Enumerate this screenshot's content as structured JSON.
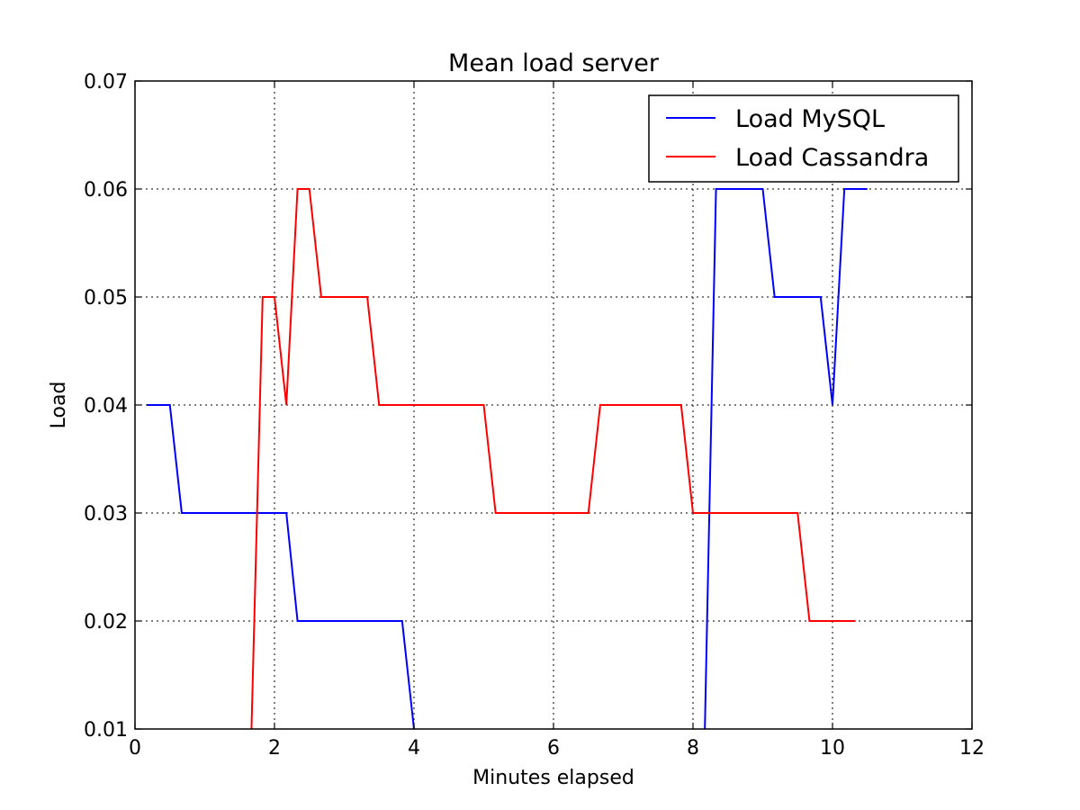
{
  "chart_data": {
    "type": "line",
    "title": "Mean load server",
    "xlabel": "Minutes elapsed",
    "ylabel": "Load",
    "xlim": [
      0,
      12
    ],
    "ylim": [
      0.01,
      0.07
    ],
    "xticks": [
      0,
      2,
      4,
      6,
      8,
      10,
      12
    ],
    "xtick_labels": [
      "0",
      "2",
      "4",
      "6",
      "8",
      "10",
      "12"
    ],
    "yticks": [
      0.01,
      0.02,
      0.03,
      0.04,
      0.05,
      0.06,
      0.07
    ],
    "ytick_labels": [
      "0.01",
      "0.02",
      "0.03",
      "0.04",
      "0.05",
      "0.06",
      "0.07"
    ],
    "grid": true,
    "legend_position": "top-right",
    "series": [
      {
        "name": "Load MySQL",
        "color": "#0000ff",
        "x": [
          0.17,
          0.5,
          0.67,
          0.83,
          1.0,
          1.17,
          1.33,
          1.5,
          1.67,
          1.83,
          2.0,
          2.17,
          2.33,
          2.5,
          2.67,
          2.83,
          3.0,
          3.17,
          3.33,
          3.5,
          3.67,
          3.83,
          4.0,
          4.17,
          8.0,
          8.17,
          8.33,
          8.5,
          8.67,
          8.83,
          9.0,
          9.17,
          9.33,
          9.5,
          9.67,
          9.83,
          10.0,
          10.17,
          10.33,
          10.5
        ],
        "y": [
          0.04,
          0.04,
          0.03,
          0.03,
          0.03,
          0.03,
          0.03,
          0.03,
          0.03,
          0.03,
          0.03,
          0.03,
          0.02,
          0.02,
          0.02,
          0.02,
          0.02,
          0.02,
          0.02,
          0.02,
          0.02,
          0.02,
          0.01,
          0.0,
          0.0,
          0.01,
          0.06,
          0.06,
          0.06,
          0.06,
          0.06,
          0.05,
          0.05,
          0.05,
          0.05,
          0.05,
          0.04,
          0.06,
          0.06,
          0.06
        ]
      },
      {
        "name": "Load Cassandra",
        "color": "#ff0000",
        "x": [
          1.5,
          1.67,
          1.83,
          2.0,
          2.17,
          2.33,
          2.5,
          2.67,
          2.83,
          3.0,
          3.17,
          3.33,
          3.5,
          3.67,
          3.83,
          4.0,
          4.17,
          4.33,
          4.5,
          4.67,
          4.83,
          5.0,
          5.17,
          5.33,
          5.5,
          5.67,
          5.83,
          6.0,
          6.17,
          6.33,
          6.5,
          6.67,
          6.83,
          7.0,
          7.17,
          7.33,
          7.5,
          7.67,
          7.83,
          8.0,
          8.17,
          8.33,
          8.5,
          8.67,
          8.83,
          9.0,
          9.17,
          9.33,
          9.5,
          9.67,
          9.83,
          10.0,
          10.17,
          10.33
        ],
        "y": [
          0.0,
          0.01,
          0.05,
          0.05,
          0.04,
          0.06,
          0.06,
          0.05,
          0.05,
          0.05,
          0.05,
          0.05,
          0.04,
          0.04,
          0.04,
          0.04,
          0.04,
          0.04,
          0.04,
          0.04,
          0.04,
          0.04,
          0.03,
          0.03,
          0.03,
          0.03,
          0.03,
          0.03,
          0.03,
          0.03,
          0.03,
          0.04,
          0.04,
          0.04,
          0.04,
          0.04,
          0.04,
          0.04,
          0.04,
          0.03,
          0.03,
          0.03,
          0.03,
          0.03,
          0.03,
          0.03,
          0.03,
          0.03,
          0.03,
          0.02,
          0.02,
          0.02,
          0.02,
          0.02
        ]
      }
    ]
  }
}
